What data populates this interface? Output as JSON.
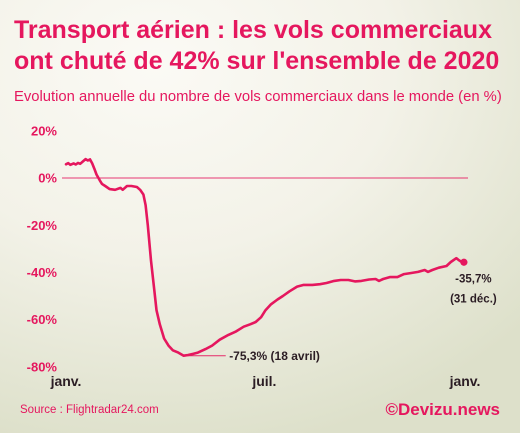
{
  "colors": {
    "accent": "#e5175e",
    "annotation_text": "#2b1d24",
    "background_light": "#fbfaf5",
    "background_dark": "#dde0ca"
  },
  "footer": {
    "source": "Source : Flightradar24.com",
    "credit": "©Devizu.news"
  },
  "chart_data": {
    "type": "line",
    "title": [
      "Transport aérien : les vols commerciaux",
      "ont chuté de 42% sur l'ensemble de 2020"
    ],
    "subtitle": "Evolution annuelle du nombre de vols commerciaux dans le monde (en %)",
    "xlim": [
      "2020-01-01",
      "2021-01-01"
    ],
    "ylim": [
      -80,
      20
    ],
    "grid": false,
    "x_ticks": [
      {
        "value": "2020-01-01",
        "label": "janv."
      },
      {
        "value": "2020-07-01",
        "label": "juil."
      },
      {
        "value": "2021-01-01",
        "label": "janv."
      }
    ],
    "y_ticks": [
      {
        "value": 20,
        "label": "20%"
      },
      {
        "value": 0,
        "label": "0%"
      },
      {
        "value": -20,
        "label": "-20%"
      },
      {
        "value": -40,
        "label": "-40%"
      },
      {
        "value": -60,
        "label": "-60%"
      },
      {
        "value": -80,
        "label": "-80%"
      }
    ],
    "y_reference_lines": [
      0
    ],
    "series": [
      {
        "x": [
          "2020-01-01",
          "2020-01-03",
          "2020-01-05",
          "2020-01-08",
          "2020-01-10",
          "2020-01-12",
          "2020-01-14",
          "2020-01-17",
          "2020-01-19",
          "2020-01-21",
          "2020-01-23",
          "2020-01-25",
          "2020-01-27",
          "2020-01-29",
          "2020-02-01",
          "2020-02-03",
          "2020-02-06",
          "2020-02-10",
          "2020-02-15",
          "2020-02-20",
          "2020-02-22",
          "2020-02-26",
          "2020-03-01",
          "2020-03-06",
          "2020-03-09",
          "2020-03-12",
          "2020-03-14",
          "2020-03-16",
          "2020-03-19",
          "2020-03-22",
          "2020-03-24",
          "2020-03-27",
          "2020-03-31",
          "2020-04-04",
          "2020-04-08",
          "2020-04-13",
          "2020-04-18",
          "2020-04-22",
          "2020-04-27",
          "2020-05-01",
          "2020-05-08",
          "2020-05-14",
          "2020-05-21",
          "2020-05-29",
          "2020-06-05",
          "2020-06-12",
          "2020-06-18",
          "2020-06-23",
          "2020-06-28",
          "2020-07-02",
          "2020-07-07",
          "2020-07-13",
          "2020-07-18",
          "2020-07-24",
          "2020-07-31",
          "2020-08-06",
          "2020-08-14",
          "2020-08-21",
          "2020-08-27",
          "2020-09-03",
          "2020-09-09",
          "2020-09-16",
          "2020-09-22",
          "2020-09-28",
          "2020-10-05",
          "2020-10-11",
          "2020-10-14",
          "2020-10-18",
          "2020-10-24",
          "2020-10-31",
          "2020-11-06",
          "2020-11-12",
          "2020-11-19",
          "2020-11-25",
          "2020-11-28",
          "2020-12-02",
          "2020-12-08",
          "2020-12-15",
          "2020-12-19",
          "2020-12-24",
          "2020-12-26",
          "2020-12-29",
          "2020-12-31"
        ],
        "y": [
          5.8,
          6.3,
          5.6,
          6.2,
          5.7,
          6.4,
          6.0,
          7.2,
          8.0,
          7.4,
          7.9,
          6.2,
          4.0,
          1.5,
          -1.0,
          -2.5,
          -3.4,
          -4.7,
          -5.0,
          -4.2,
          -5.0,
          -3.4,
          -3.4,
          -3.8,
          -5.0,
          -7.0,
          -11.5,
          -20.0,
          -35.0,
          -47.5,
          -56.0,
          -62.0,
          -68.0,
          -71.0,
          -73.0,
          -74.0,
          -75.3,
          -75.0,
          -74.5,
          -74.0,
          -72.5,
          -71.0,
          -68.5,
          -66.5,
          -65.0,
          -63.0,
          -62.0,
          -61.0,
          -59.0,
          -56.0,
          -53.5,
          -51.5,
          -50.0,
          -48.0,
          -46.0,
          -45.3,
          -45.3,
          -45.0,
          -44.5,
          -43.6,
          -43.2,
          -43.2,
          -43.8,
          -43.6,
          -43.0,
          -42.8,
          -43.6,
          -42.8,
          -42.0,
          -42.0,
          -40.7,
          -40.3,
          -39.8,
          -39.0,
          -39.8,
          -39.0,
          -38.0,
          -37.3,
          -35.6,
          -34.0,
          -34.7,
          -35.6,
          -35.7
        ]
      }
    ],
    "annotations": [
      {
        "x": "2020-04-18",
        "y": -75.3,
        "lines": [
          "-75,3% (18 avril)"
        ],
        "marker": "line",
        "label_position": "right"
      },
      {
        "x": "2020-12-31",
        "y": -35.7,
        "lines": [
          "-35,7%",
          "(31 déc.)"
        ],
        "marker": "dot",
        "label_position": "below"
      }
    ]
  }
}
